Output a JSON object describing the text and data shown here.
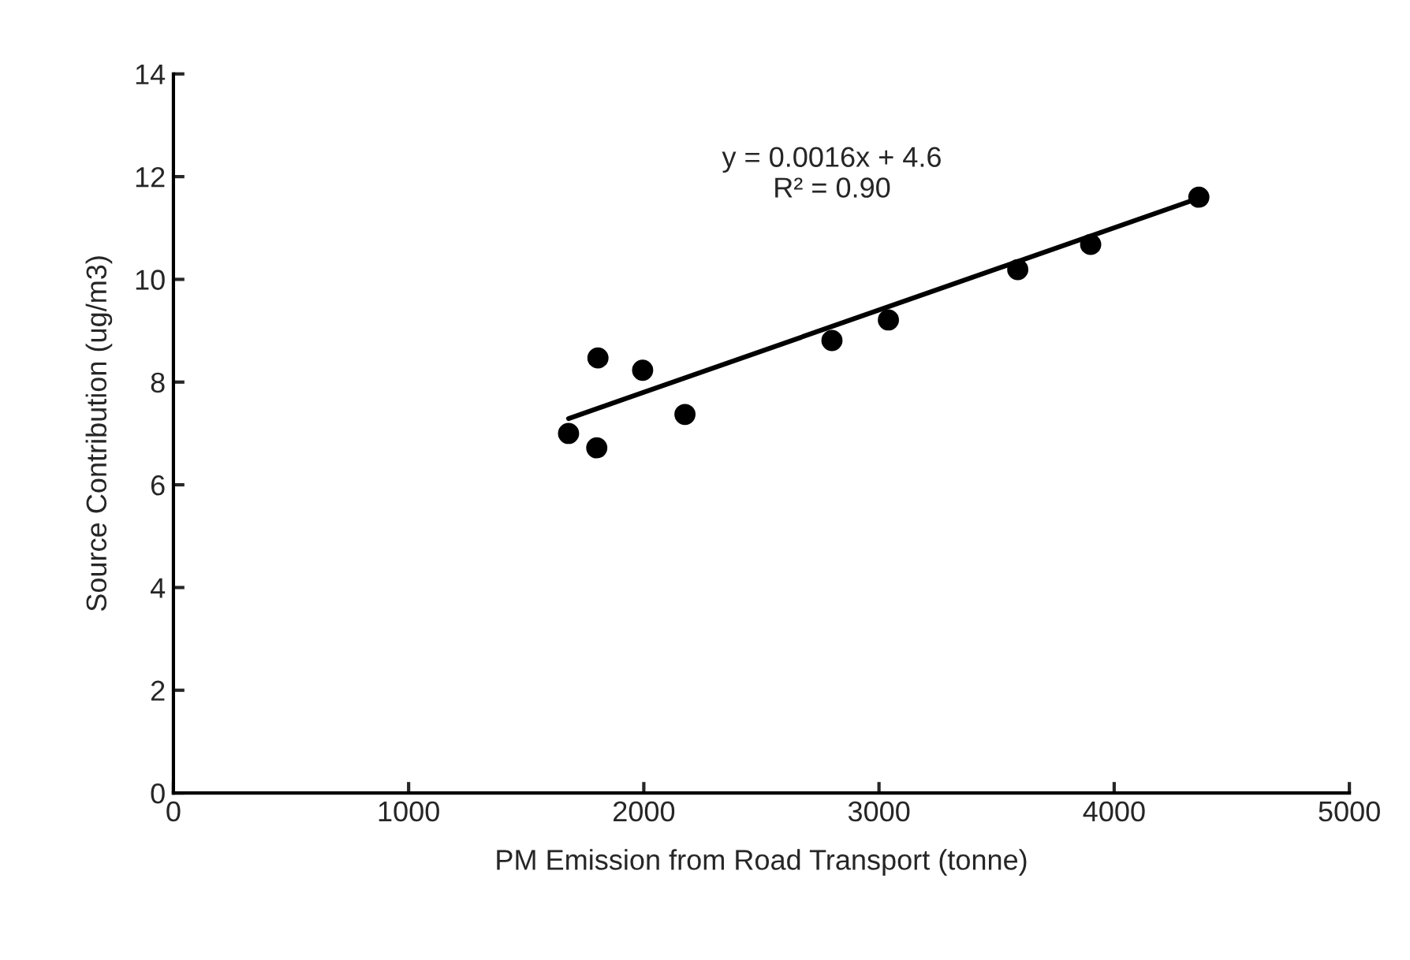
{
  "chart_data": {
    "type": "scatter",
    "xlabel": "PM Emission from Road Transport (tonne)",
    "ylabel": "Source Contribution (ug/m3)",
    "series": [
      {
        "color": "#000000",
        "marker": "circle",
        "x": [
          1680,
          1800,
          1805,
          1995,
          2175,
          2800,
          3040,
          3590,
          3900,
          4360
        ],
        "values": [
          7.0,
          6.72,
          8.47,
          8.23,
          7.37,
          8.81,
          9.21,
          10.19,
          10.68,
          11.6
        ]
      },
      {
        "type": "line",
        "color": "#000000",
        "x": [
          1680,
          4360
        ],
        "values": [
          7.29,
          11.58
        ]
      }
    ],
    "annotations": [
      "y = 0.0016x + 4.6\nR² = 0.90"
    ],
    "xlim": [
      0,
      5000
    ],
    "xticks": [
      0,
      1000,
      2000,
      3000,
      4000,
      5000
    ],
    "ylim": [
      0,
      14
    ],
    "yticks": [
      0,
      2,
      4,
      6,
      8,
      10,
      12,
      14
    ],
    "grid": false,
    "legend": false
  }
}
